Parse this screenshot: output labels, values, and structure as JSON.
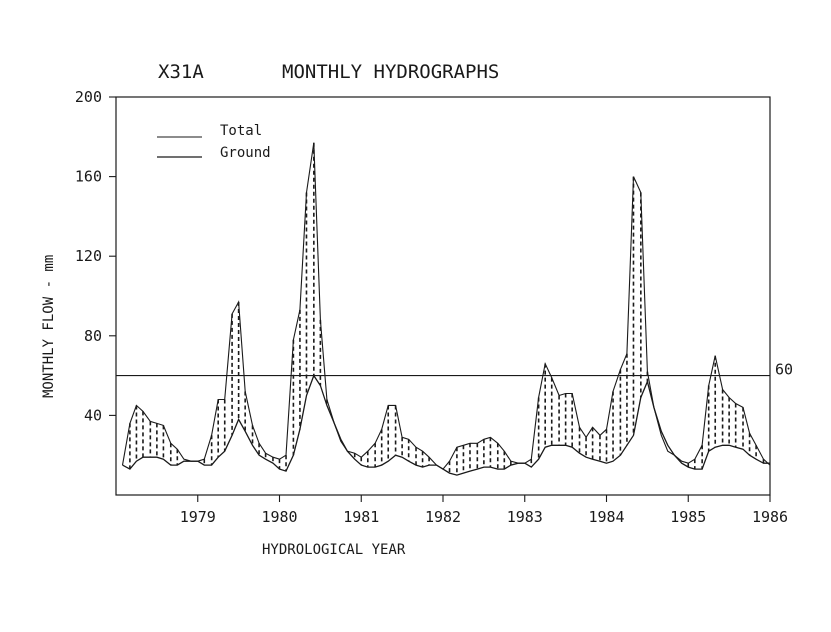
{
  "chart_data": {
    "type": "area",
    "title_station": "X31A",
    "title": "MONTHLY HYDROGRAPHS",
    "xlabel": "HYDROLOGICAL YEAR",
    "ylabel": "MONTHLY FLOW - mm",
    "ylim": [
      0,
      200
    ],
    "xlim": [
      1978,
      1986
    ],
    "yticks": [
      "40",
      "80",
      "120",
      "160",
      "200"
    ],
    "xticks": [
      "1979",
      "1980",
      "1981",
      "1982",
      "1983",
      "1984",
      "1985",
      "1986"
    ],
    "reference_line": {
      "value": 60,
      "label": "60"
    },
    "legend": {
      "placement": "top-left"
    },
    "grid": false,
    "series": [
      {
        "name": "Total",
        "x": [
          1978.08,
          1978.17,
          1978.25,
          1978.33,
          1978.42,
          1978.5,
          1978.58,
          1978.67,
          1978.75,
          1978.83,
          1978.92,
          1979.0,
          1979.08,
          1979.17,
          1979.25,
          1979.33,
          1979.42,
          1979.5,
          1979.58,
          1979.67,
          1979.75,
          1979.83,
          1979.92,
          1980.0,
          1980.08,
          1980.17,
          1980.25,
          1980.33,
          1980.42,
          1980.5,
          1980.58,
          1980.67,
          1980.75,
          1980.83,
          1980.92,
          1981.0,
          1981.08,
          1981.17,
          1981.25,
          1981.33,
          1981.42,
          1981.5,
          1981.58,
          1981.67,
          1981.75,
          1981.83,
          1981.92,
          1982.0,
          1982.08,
          1982.17,
          1982.25,
          1982.33,
          1982.42,
          1982.5,
          1982.58,
          1982.67,
          1982.75,
          1982.83,
          1982.92,
          1983.0,
          1983.08,
          1983.17,
          1983.25,
          1983.33,
          1983.42,
          1983.5,
          1983.58,
          1983.67,
          1983.75,
          1983.83,
          1983.92,
          1984.0,
          1984.08,
          1984.17,
          1984.25,
          1984.33,
          1984.42,
          1984.5,
          1984.58,
          1984.67,
          1984.75,
          1984.83,
          1984.92,
          1985.0,
          1985.08,
          1985.17,
          1985.25,
          1985.33,
          1985.42,
          1985.5,
          1985.58,
          1985.67,
          1985.75,
          1985.83,
          1985.92,
          1986.0
        ],
        "values": [
          15,
          36,
          45,
          42,
          37,
          36,
          35,
          26,
          23,
          18,
          17,
          17,
          18,
          30,
          48,
          48,
          91,
          97,
          52,
          35,
          26,
          21,
          19,
          18,
          20,
          78,
          93,
          152,
          177,
          88,
          48,
          36,
          27,
          22,
          21,
          19,
          22,
          26,
          33,
          45,
          45,
          29,
          28,
          24,
          22,
          19,
          15,
          13,
          17,
          24,
          25,
          26,
          26,
          28,
          29,
          26,
          22,
          17,
          16,
          16,
          18,
          49,
          66,
          59,
          50,
          51,
          51,
          34,
          29,
          34,
          30,
          33,
          52,
          63,
          71,
          160,
          152,
          62,
          44,
          30,
          22,
          20,
          17,
          16,
          18,
          25,
          55,
          70,
          53,
          49,
          46,
          44,
          31,
          25,
          18,
          15
        ]
      },
      {
        "name": "Ground",
        "x": [
          1978.08,
          1978.17,
          1978.25,
          1978.33,
          1978.42,
          1978.5,
          1978.58,
          1978.67,
          1978.75,
          1978.83,
          1978.92,
          1979.0,
          1979.08,
          1979.17,
          1979.25,
          1979.33,
          1979.42,
          1979.5,
          1979.58,
          1979.67,
          1979.75,
          1979.83,
          1979.92,
          1980.0,
          1980.08,
          1980.17,
          1980.25,
          1980.33,
          1980.42,
          1980.5,
          1980.58,
          1980.67,
          1980.75,
          1980.83,
          1980.92,
          1981.0,
          1981.08,
          1981.17,
          1981.25,
          1981.33,
          1981.42,
          1981.5,
          1981.58,
          1981.67,
          1981.75,
          1981.83,
          1981.92,
          1982.0,
          1982.08,
          1982.17,
          1982.25,
          1982.33,
          1982.42,
          1982.5,
          1982.58,
          1982.67,
          1982.75,
          1982.83,
          1982.92,
          1983.0,
          1983.08,
          1983.17,
          1983.25,
          1983.33,
          1983.42,
          1983.5,
          1983.58,
          1983.67,
          1983.75,
          1983.83,
          1983.92,
          1984.0,
          1984.08,
          1984.17,
          1984.25,
          1984.33,
          1984.42,
          1984.5,
          1984.58,
          1984.67,
          1984.75,
          1984.83,
          1984.92,
          1985.0,
          1985.08,
          1985.17,
          1985.25,
          1985.33,
          1985.42,
          1985.5,
          1985.58,
          1985.67,
          1985.75,
          1985.83,
          1985.92,
          1986.0
        ],
        "values": [
          15,
          13,
          17,
          19,
          19,
          19,
          18,
          15,
          15,
          17,
          17,
          17,
          15,
          15,
          19,
          22,
          30,
          38,
          32,
          25,
          20,
          18,
          16,
          13,
          12,
          20,
          33,
          50,
          60,
          55,
          45,
          36,
          28,
          22,
          18,
          15,
          14,
          14,
          15,
          17,
          20,
          19,
          17,
          15,
          14,
          15,
          15,
          13,
          11,
          10,
          11,
          12,
          13,
          14,
          14,
          13,
          13,
          15,
          16,
          16,
          14,
          18,
          24,
          25,
          25,
          25,
          24,
          21,
          19,
          18,
          17,
          16,
          17,
          20,
          25,
          30,
          49,
          57,
          44,
          32,
          25,
          20,
          16,
          14,
          13,
          13,
          22,
          24,
          25,
          25,
          24,
          23,
          20,
          18,
          16,
          16
        ]
      }
    ]
  }
}
